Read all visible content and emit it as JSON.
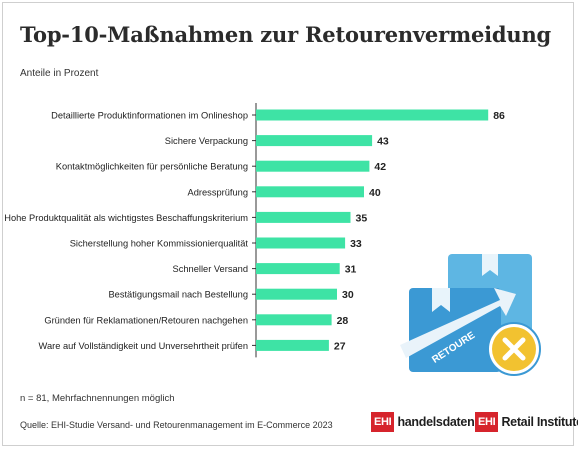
{
  "title": "Top-10-Maßnahmen zur Retourenvermeidung",
  "subtitle": "Anteile in Prozent",
  "note": "n = 81, Mehrfachnennungen möglich",
  "source": "Quelle: EHI-Studie Versand- und Retourenmanagement im E-Commerce 2023",
  "logos": {
    "badge": "EHI",
    "handelsdaten": "handelsdaten.de",
    "retail": "Retail Institute",
    "reg": "®"
  },
  "illustration": {
    "label": "RETOURE",
    "icon": "x-icon"
  },
  "colors": {
    "bar": "#3ee3a5",
    "box_light": "#5eb6e3",
    "box_dark": "#3b99d4",
    "badge": "#f2c230",
    "brand": "#d6242c"
  },
  "chart_data": {
    "type": "bar",
    "orientation": "horizontal",
    "categories": [
      "Detaillierte Produktinformationen im Onlineshop",
      "Sichere Verpackung",
      "Kontaktmöglichkeiten für persönliche Beratung",
      "Adressprüfung",
      "Hohe Produktqualität als wichtigstes Beschaffungskriterium",
      "Sicherstellung hoher Kommissionierqualität",
      "Schneller Versand",
      "Bestätigungsmail nach Bestellung",
      "Gründen für Reklamationen/Retouren nachgehen",
      "Ware auf Vollständigkeit und Unversehrtheit prüfen"
    ],
    "values": [
      86,
      43,
      42,
      40,
      35,
      33,
      31,
      30,
      28,
      27
    ],
    "xlim": [
      0,
      100
    ],
    "grid": false
  }
}
